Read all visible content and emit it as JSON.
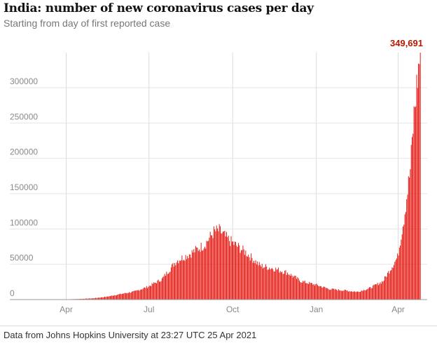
{
  "title": "India: number of new coronavirus cases per day",
  "subtitle": "Starting from day of first reported case",
  "source": "Data from Johns Hopkins University at 23:27 UTC 25 Apr 2021",
  "colors": {
    "bar": "#e3120b",
    "peak_label": "#b51800",
    "grid": "#e6e6e6",
    "vline": "#dcdcdc"
  },
  "chart_data": {
    "type": "bar",
    "title": "India: number of new coronavirus cases per day",
    "subtitle": "Starting from day of first reported case",
    "xlabel": "",
    "ylabel": "",
    "grid": true,
    "ylim": [
      0,
      349691
    ],
    "yticks": [
      0,
      50000,
      100000,
      150000,
      200000,
      250000,
      300000
    ],
    "ytick_labels": [
      "0",
      "50000",
      "100000",
      "150000",
      "200000",
      "250000",
      "300000"
    ],
    "xtick_labels": [
      "Apr",
      "Jul",
      "Oct",
      "Jan",
      "Apr"
    ],
    "xtick_dates": [
      "2020-04-01",
      "2020-07-01",
      "2020-10-01",
      "2021-01-01",
      "2021-04-01"
    ],
    "start_date": "2020-01-30",
    "end_date": "2021-04-25",
    "annotation": {
      "label": "349,691",
      "date": "2021-04-25",
      "value": 349691
    },
    "series": [
      {
        "anchors": [
          [
            "2020-01-30",
            0
          ],
          [
            "2020-02-29",
            0
          ],
          [
            "2020-03-15",
            50
          ],
          [
            "2020-03-31",
            400
          ],
          [
            "2020-04-15",
            900
          ],
          [
            "2020-04-30",
            1800
          ],
          [
            "2020-05-15",
            4000
          ],
          [
            "2020-05-31",
            8000
          ],
          [
            "2020-06-15",
            11500
          ],
          [
            "2020-06-30",
            18500
          ],
          [
            "2020-07-15",
            29000
          ],
          [
            "2020-07-31",
            55000
          ],
          [
            "2020-08-15",
            65000
          ],
          [
            "2020-08-31",
            78000
          ],
          [
            "2020-09-10",
            96000
          ],
          [
            "2020-09-16",
            97800
          ],
          [
            "2020-09-25",
            86000
          ],
          [
            "2020-09-30",
            81000
          ],
          [
            "2020-10-15",
            67000
          ],
          [
            "2020-10-31",
            48000
          ],
          [
            "2020-11-15",
            44000
          ],
          [
            "2020-11-30",
            38000
          ],
          [
            "2020-12-15",
            26000
          ],
          [
            "2020-12-31",
            21000
          ],
          [
            "2021-01-15",
            15000
          ],
          [
            "2021-01-31",
            13000
          ],
          [
            "2021-02-15",
            11000
          ],
          [
            "2021-02-28",
            16000
          ],
          [
            "2021-03-15",
            26000
          ],
          [
            "2021-03-31",
            60000
          ],
          [
            "2021-04-07",
            115000
          ],
          [
            "2021-04-14",
            184000
          ],
          [
            "2021-04-18",
            261000
          ],
          [
            "2021-04-22",
            315000
          ],
          [
            "2021-04-25",
            349691
          ]
        ]
      }
    ]
  }
}
